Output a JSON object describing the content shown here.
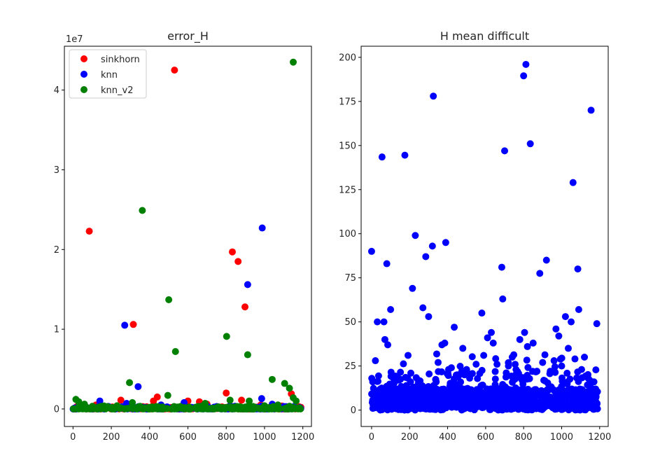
{
  "chart_data": [
    {
      "type": "scatter",
      "title": "error_H",
      "xlim": [
        -45,
        1245
      ],
      "ylim": [
        -2200000,
        45500000
      ],
      "y_offset_label": "1e7",
      "x_ticks": [
        0,
        200,
        400,
        600,
        800,
        1000,
        1200
      ],
      "y_ticks": [
        0,
        10000000,
        20000000,
        30000000,
        40000000
      ],
      "y_tick_labels": [
        "0",
        "1",
        "2",
        "3",
        "4"
      ],
      "legend": {
        "position": "upper-left"
      },
      "series": [
        {
          "name": "sinkhorn",
          "color": "#ff0000",
          "points": [
            [
              85,
              22300000
            ],
            [
              315,
              10600000
            ],
            [
              530,
              42500000
            ],
            [
              832,
              19700000
            ],
            [
              862,
              18500000
            ],
            [
              898,
              12800000
            ],
            [
              800,
              2000000
            ],
            [
              600,
              1000000
            ],
            [
              660,
              900000
            ],
            [
              420,
              1000000
            ],
            [
              440,
              1500000
            ],
            [
              250,
              1100000
            ],
            [
              880,
              1100000
            ],
            [
              1140,
              1900000
            ],
            [
              120,
              500000
            ],
            [
              700,
              600000
            ],
            [
              980,
              500000
            ],
            [
              20,
              300000
            ],
            [
              1190,
              200000
            ]
          ]
        },
        {
          "name": "knn",
          "color": "#0000ff",
          "points": [
            [
              270,
              10500000
            ],
            [
              340,
              2800000
            ],
            [
              988,
              22700000
            ],
            [
              912,
              15600000
            ],
            [
              985,
              1300000
            ],
            [
              140,
              1000000
            ],
            [
              580,
              800000
            ],
            [
              280,
              700000
            ],
            [
              1040,
              600000
            ],
            [
              820,
              400000
            ],
            [
              460,
              500000
            ],
            [
              50,
              200000
            ],
            [
              750,
              300000
            ],
            [
              1100,
              300000
            ],
            [
              640,
              200000
            ]
          ]
        },
        {
          "name": "knn_v2",
          "color": "#008000",
          "points": [
            [
              1150,
              43500000
            ],
            [
              362,
              24900000
            ],
            [
              500,
              13700000
            ],
            [
              535,
              7200000
            ],
            [
              802,
              9100000
            ],
            [
              912,
              6800000
            ],
            [
              1040,
              3700000
            ],
            [
              1105,
              3200000
            ],
            [
              1130,
              2600000
            ],
            [
              295,
              3300000
            ],
            [
              495,
              1700000
            ],
            [
              15,
              1200000
            ],
            [
              30,
              900000
            ],
            [
              310,
              800000
            ],
            [
              690,
              700000
            ],
            [
              1000,
              400000
            ],
            [
              1150,
              1400000
            ],
            [
              1165,
              1000000
            ],
            [
              560,
              300000
            ],
            [
              880,
              200000
            ],
            [
              180,
              200000
            ],
            [
              1070,
              500000
            ],
            [
              920,
              1000000
            ],
            [
              60,
              600000
            ],
            [
              230,
              400000
            ],
            [
              410,
              200000
            ],
            [
              760,
              200000
            ],
            [
              820,
              1100000
            ]
          ]
        }
      ]
    },
    {
      "type": "scatter",
      "title": "H mean difficult",
      "xlim": [
        -55,
        1245
      ],
      "ylim": [
        -9.3,
        206.3
      ],
      "x_ticks": [
        0,
        200,
        400,
        600,
        800,
        1000,
        1200
      ],
      "y_ticks": [
        0,
        25,
        50,
        75,
        100,
        125,
        150,
        175,
        200
      ],
      "y_tick_labels": [
        "0",
        "25",
        "50",
        "75",
        "100",
        "125",
        "150",
        "175",
        "200"
      ],
      "series": [
        {
          "color": "#0000ff",
          "points": [
            [
              0,
              90
            ],
            [
              20,
              28
            ],
            [
              30,
              50
            ],
            [
              55,
              143.5
            ],
            [
              65,
              50
            ],
            [
              70,
              40
            ],
            [
              80,
              83
            ],
            [
              85,
              37
            ],
            [
              100,
              57
            ],
            [
              120,
              19
            ],
            [
              140,
              18
            ],
            [
              175,
              144.5
            ],
            [
              205,
              16
            ],
            [
              215,
              69
            ],
            [
              230,
              99
            ],
            [
              245,
              17
            ],
            [
              270,
              58
            ],
            [
              285,
              87
            ],
            [
              300,
              53
            ],
            [
              320,
              93
            ],
            [
              325,
              178
            ],
            [
              340,
              16
            ],
            [
              350,
              27
            ],
            [
              370,
              37
            ],
            [
              385,
              38
            ],
            [
              390,
              95
            ],
            [
              405,
              23
            ],
            [
              420,
              24
            ],
            [
              435,
              47
            ],
            [
              450,
              20
            ],
            [
              480,
              35
            ],
            [
              500,
              23
            ],
            [
              520,
              20
            ],
            [
              550,
              26
            ],
            [
              580,
              55
            ],
            [
              590,
              31
            ],
            [
              610,
              41
            ],
            [
              630,
              44
            ],
            [
              640,
              38
            ],
            [
              660,
              26
            ],
            [
              685,
              81
            ],
            [
              690,
              63
            ],
            [
              700,
              147
            ],
            [
              720,
              25
            ],
            [
              740,
              30
            ],
            [
              760,
              23
            ],
            [
              780,
              40
            ],
            [
              800,
              189.5
            ],
            [
              805,
              44
            ],
            [
              812,
              196
            ],
            [
              820,
              36
            ],
            [
              835,
              151
            ],
            [
              850,
              38
            ],
            [
              870,
              22
            ],
            [
              885,
              77.5
            ],
            [
              900,
              27
            ],
            [
              920,
              85
            ],
            [
              940,
              22
            ],
            [
              960,
              28
            ],
            [
              970,
              46
            ],
            [
              985,
              42
            ],
            [
              1000,
              25
            ],
            [
              1020,
              53
            ],
            [
              1035,
              35
            ],
            [
              1050,
              50
            ],
            [
              1060,
              129
            ],
            [
              1070,
              29
            ],
            [
              1085,
              80
            ],
            [
              1090,
              57
            ],
            [
              1105,
              23
            ],
            [
              1120,
              30
            ],
            [
              1140,
              18
            ],
            [
              1155,
              170
            ],
            [
              1170,
              16
            ],
            [
              1185,
              49
            ]
          ]
        }
      ]
    }
  ]
}
